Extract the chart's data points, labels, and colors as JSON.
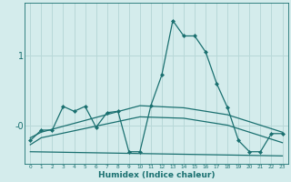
{
  "xlabel": "Humidex (Indice chaleur)",
  "ylabel": "",
  "bg_color": "#d4ecec",
  "grid_color": "#b8d8d8",
  "line_color": "#1a7070",
  "x_ticks": [
    0,
    1,
    2,
    3,
    4,
    5,
    6,
    7,
    8,
    9,
    10,
    11,
    12,
    13,
    14,
    15,
    16,
    17,
    18,
    19,
    20,
    21,
    22,
    23
  ],
  "xlim": [
    -0.5,
    23.5
  ],
  "ylim": [
    -0.55,
    1.75
  ],
  "yticks": [
    0.0,
    1.0
  ],
  "ytick_labels": [
    "-0",
    "1"
  ],
  "series": [
    {
      "x": [
        0,
        1,
        2,
        3,
        4,
        5,
        6,
        7,
        8,
        9,
        10,
        11,
        12,
        13,
        14,
        15,
        16,
        17,
        18,
        19,
        20,
        21,
        22,
        23
      ],
      "y": [
        -0.22,
        -0.07,
        -0.07,
        0.27,
        0.2,
        0.27,
        -0.03,
        0.18,
        0.2,
        -0.38,
        -0.38,
        0.28,
        0.72,
        1.5,
        1.28,
        1.28,
        1.05,
        0.6,
        0.25,
        -0.22,
        -0.38,
        -0.38,
        -0.12,
        -0.12
      ],
      "marker": "D",
      "marker_size": 2.0,
      "linewidth": 0.9
    },
    {
      "x": [
        0,
        1,
        10,
        14,
        18,
        23
      ],
      "y": [
        -0.18,
        -0.1,
        0.28,
        0.25,
        0.15,
        -0.1
      ],
      "marker": null,
      "linewidth": 0.9
    },
    {
      "x": [
        0,
        1,
        10,
        14,
        18,
        23
      ],
      "y": [
        -0.28,
        -0.18,
        0.12,
        0.1,
        0.0,
        -0.25
      ],
      "marker": null,
      "linewidth": 0.9
    },
    {
      "x": [
        0,
        23
      ],
      "y": [
        -0.38,
        -0.44
      ],
      "marker": null,
      "linewidth": 0.9
    }
  ]
}
